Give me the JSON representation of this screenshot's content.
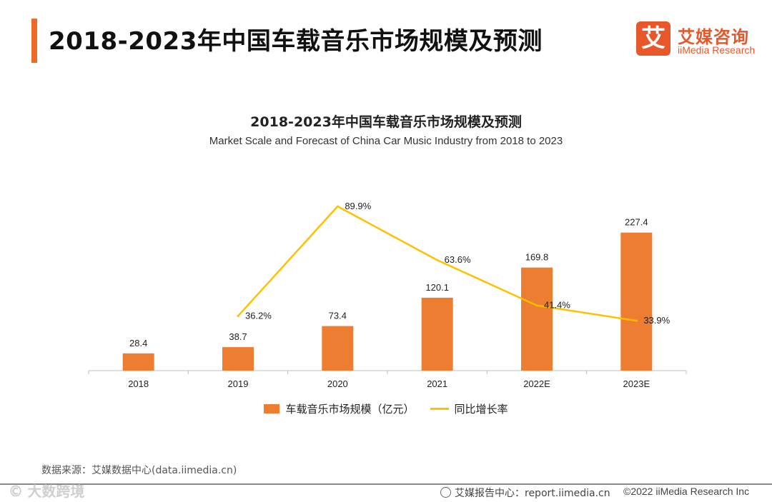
{
  "page": {
    "title": "2018-2023年中国车载音乐市场规模及预测",
    "logo_mark": "艾",
    "logo_cn": "艾媒咨询",
    "logo_en": "iiMedia Research",
    "source": "数据来源：艾媒数据中心(data.iimedia.cn)",
    "footer_center": "艾媒报告中心：report.iimedia.cn",
    "footer_right": "©2022  iiMedia Research  Inc",
    "watermark": "© 大数跨境"
  },
  "colors": {
    "accent": "#f06a2c",
    "bar": "#ed7d31",
    "line": "#ffc000"
  },
  "chart_data": {
    "type": "bar",
    "title": "2018-2023年中国车载音乐市场规模及预测",
    "subtitle": "Market Scale and Forecast of China Car Music Industry from 2018 to 2023",
    "categories": [
      "2018",
      "2019",
      "2020",
      "2021",
      "2022E",
      "2023E"
    ],
    "series": [
      {
        "name": "车载音乐市场规模（亿元）",
        "type": "bar",
        "values": [
          28.4,
          38.7,
          73.4,
          120.1,
          169.8,
          227.4
        ],
        "labels": [
          "28.4",
          "38.7",
          "73.4",
          "120.1",
          "169.8",
          "227.4"
        ]
      },
      {
        "name": "同比增长率",
        "type": "line",
        "values": [
          null,
          36.2,
          89.9,
          63.6,
          41.4,
          33.9
        ],
        "labels": [
          "",
          "36.2%",
          "89.9%",
          "63.6%",
          "41.4%",
          "33.9%"
        ]
      }
    ],
    "legend": "bottom",
    "grid": false
  }
}
